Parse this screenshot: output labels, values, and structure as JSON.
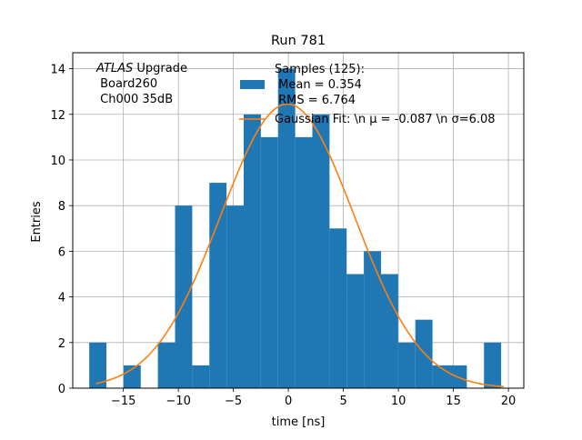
{
  "chart_data": {
    "type": "bar",
    "title": "Run 781",
    "xlabel": "time [ns]",
    "ylabel": "Entries",
    "xlim": [
      -19.6,
      21.4
    ],
    "ylim": [
      0,
      14.7
    ],
    "grid": true,
    "xticks": [
      -15,
      -10,
      -5,
      0,
      5,
      10,
      15,
      20
    ],
    "xtick_labels": [
      "−15",
      "−10",
      "−5",
      "0",
      "5",
      "10",
      "15",
      "20"
    ],
    "yticks": [
      0,
      2,
      4,
      6,
      8,
      10,
      12,
      14
    ],
    "ytick_labels": [
      "0",
      "2",
      "4",
      "6",
      "8",
      "10",
      "12",
      "14"
    ],
    "bin_start": -18.1,
    "bin_width": 1.56,
    "values": [
      2,
      0,
      1,
      0,
      2,
      8,
      1,
      9,
      8,
      12,
      11,
      14,
      11,
      12,
      7,
      5,
      6,
      5,
      2,
      3,
      1,
      1,
      0,
      2
    ],
    "bar_color": "#1f77b4",
    "fit": {
      "name": "Gaussian Fit",
      "amplitude": 12.45,
      "mu": -0.087,
      "sigma": 6.08,
      "x_range": [
        -17.5,
        19.6
      ],
      "color": "#ff7f0e"
    },
    "annotation": {
      "lines": [
        "ATLAS Upgrade",
        " Board260",
        " Ch000 35dB"
      ],
      "italic_word": "ATLAS",
      "rest_first_line": " Upgrade"
    },
    "legend": {
      "location": "upper right",
      "hist_label_lines": [
        "Samples (125):",
        " Mean = 0.354",
        " RMS = 6.764"
      ],
      "fit_label": "Gaussian Fit: \\n μ = -0.087 \\n σ=6.08"
    }
  }
}
